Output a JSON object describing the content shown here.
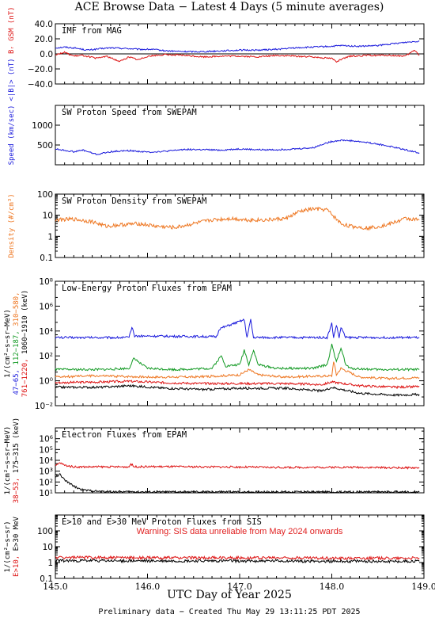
{
  "title": "ACE Browse Data − Latest 4 Days (5 minute averages)",
  "xlabel": "UTC Day of Year 2025",
  "footer": "Preliminary data − Created Thu May 29 13:11:25 PDT 2025",
  "colors": {
    "blue": "#1a1adc",
    "red": "#dd1111",
    "orange": "#ee7722",
    "green": "#119922",
    "black": "#000000"
  },
  "x_ticks": [
    {
      "v": 145,
      "label": "145.0"
    },
    {
      "v": 146,
      "label": "146.0"
    },
    {
      "v": 147,
      "label": "147.0"
    },
    {
      "v": 148,
      "label": "148.0"
    },
    {
      "v": 149,
      "label": "149.0"
    }
  ],
  "chart_data": [
    {
      "id": "imf",
      "type": "line",
      "title": "IMF from MAG",
      "xlim": [
        145,
        149
      ],
      "ylim": [
        -40,
        40
      ],
      "yscale": "linear",
      "zero_line": true,
      "y_ticks": [
        {
          "v": 40,
          "label": "40.0"
        },
        {
          "v": 20,
          "label": "20.0"
        },
        {
          "v": 0,
          "label": "0.0"
        },
        {
          "v": -20,
          "label": "−20.0"
        },
        {
          "v": -40,
          "label": "−40.0"
        }
      ],
      "ylabel_parts": [
        {
          "text": "<|B|> (nT)",
          "color": "#1a1adc"
        },
        {
          "text": "Bᵣ GSM (nT)",
          "color": "#dd1111"
        }
      ],
      "series": [
        {
          "color": "#1a1adc",
          "x": [
            145.0,
            145.1,
            145.2,
            145.35,
            145.5,
            145.6,
            145.8,
            145.9,
            146.05,
            146.2,
            146.4,
            146.6,
            146.8,
            147.0,
            147.2,
            147.4,
            147.6,
            147.8,
            148.0,
            148.1,
            148.3,
            148.5,
            148.7,
            148.85,
            148.95
          ],
          "y": [
            8,
            9,
            8,
            5,
            7,
            8,
            7,
            6,
            6,
            4,
            3,
            3,
            4,
            5,
            5,
            6,
            8,
            9,
            10,
            11,
            10,
            11,
            14,
            16,
            17
          ]
        },
        {
          "color": "#dd1111",
          "x": [
            145.0,
            145.1,
            145.2,
            145.3,
            145.45,
            145.55,
            145.7,
            145.8,
            145.9,
            146.0,
            146.2,
            146.4,
            146.6,
            146.8,
            147.0,
            147.2,
            147.4,
            147.6,
            147.8,
            148.0,
            148.05,
            148.2,
            148.4,
            148.6,
            148.8,
            148.9,
            148.95
          ],
          "y": [
            -1,
            2,
            -3,
            -2,
            -6,
            -3,
            -10,
            -4,
            -8,
            -3,
            -1,
            -2,
            -4,
            -3,
            -3,
            -4,
            -2,
            -3,
            -4,
            -6,
            -10,
            -3,
            -2,
            -2,
            -3,
            5,
            -2
          ]
        }
      ]
    },
    {
      "id": "speed",
      "type": "line",
      "title": "SW Proton Speed from SWEPAM",
      "xlim": [
        145,
        149
      ],
      "ylim": [
        0,
        1500
      ],
      "yscale": "linear",
      "y_ticks": [
        {
          "v": 1000,
          "label": "1000"
        },
        {
          "v": 500,
          "label": "500"
        }
      ],
      "ylabel_parts": [
        {
          "text": "Speed (km/sec)",
          "color": "#1a1adc"
        }
      ],
      "series": [
        {
          "color": "#1a1adc",
          "x": [
            145.0,
            145.2,
            145.3,
            145.45,
            145.6,
            145.8,
            146.0,
            146.2,
            146.4,
            146.6,
            146.8,
            147.0,
            147.2,
            147.4,
            147.6,
            147.8,
            147.9,
            148.0,
            148.1,
            148.2,
            148.4,
            148.6,
            148.8,
            148.95
          ],
          "y": [
            400,
            330,
            370,
            260,
            330,
            360,
            320,
            340,
            390,
            380,
            370,
            400,
            380,
            380,
            400,
            430,
            520,
            590,
            620,
            610,
            560,
            480,
            380,
            300
          ]
        }
      ]
    },
    {
      "id": "density",
      "type": "line",
      "title": "SW Proton Density from SWEPAM",
      "xlim": [
        145,
        149
      ],
      "ylim": [
        0.1,
        100
      ],
      "yscale": "log",
      "y_ticks": [
        {
          "v": 100,
          "label": "100"
        },
        {
          "v": 10,
          "label": "10"
        },
        {
          "v": 1,
          "label": "1"
        },
        {
          "v": 0.1,
          "label": "0.1"
        }
      ],
      "ylabel_parts": [
        {
          "text": "Density (#/cm³)",
          "color": "#ee7722"
        }
      ],
      "series": [
        {
          "color": "#ee7722",
          "x": [
            145.0,
            145.2,
            145.4,
            145.55,
            145.7,
            145.9,
            146.1,
            146.3,
            146.5,
            146.7,
            146.9,
            147.1,
            147.3,
            147.5,
            147.65,
            147.8,
            147.95,
            148.1,
            148.2,
            148.4,
            148.6,
            148.8,
            148.95
          ],
          "y": [
            6,
            6.5,
            5,
            3,
            3.5,
            4,
            3,
            2.6,
            4,
            6,
            7,
            6,
            6,
            7,
            15,
            20,
            18,
            4,
            3,
            2.5,
            3.5,
            7,
            6
          ]
        }
      ]
    },
    {
      "id": "epam_p",
      "type": "line",
      "title": "Low-Energy Proton Fluxes from EPAM",
      "xlim": [
        145,
        149
      ],
      "ylim": [
        0.01,
        100000000
      ],
      "yscale": "log",
      "y_ticks": [
        {
          "v": 100000000,
          "label": "10⁸"
        },
        {
          "v": 1000000,
          "label": "10⁶"
        },
        {
          "v": 10000,
          "label": "10⁴"
        },
        {
          "v": 100,
          "label": "10²"
        },
        {
          "v": 1,
          "label": "10⁰"
        },
        {
          "v": 0.01,
          "label": "10⁻²"
        }
      ],
      "ylabel_lines": [
        [
          {
            "text": "1/(cm²−s−sr−MeV)",
            "color": "#000000"
          }
        ],
        [
          {
            "text": "47−65, ",
            "color": "#1a1adc"
          },
          {
            "text": "112−187, ",
            "color": "#119922"
          },
          {
            "text": "310−580,",
            "color": "#ee7722"
          }
        ],
        [
          {
            "text": "761−1220, ",
            "color": "#dd1111"
          },
          {
            "text": "1060−1910 (keV)",
            "color": "#000000"
          }
        ]
      ],
      "series": [
        {
          "color": "#1a1adc",
          "x": [
            145.0,
            145.15,
            145.8,
            145.83,
            145.86,
            146.75,
            146.78,
            147.05,
            147.08,
            147.12,
            147.15,
            147.2,
            147.95,
            148.0,
            148.02,
            148.05,
            148.08,
            148.1,
            148.15,
            148.3,
            148.6,
            148.95
          ],
          "y": [
            3000,
            3000,
            3000,
            20000,
            4000,
            3500,
            15000,
            80000,
            3000,
            80000,
            3000,
            3000,
            3000,
            40000,
            3000,
            30000,
            3000,
            20000,
            3000,
            3000,
            3000,
            3000
          ]
        },
        {
          "color": "#119922",
          "x": [
            145.0,
            145.5,
            145.8,
            145.85,
            146.0,
            146.3,
            146.7,
            146.8,
            146.85,
            147.0,
            147.05,
            147.1,
            147.15,
            147.2,
            147.4,
            147.8,
            147.95,
            148.0,
            148.05,
            148.1,
            148.15,
            148.2,
            148.5,
            148.95
          ],
          "y": [
            8,
            8,
            10,
            60,
            10,
            8,
            10,
            100,
            15,
            20,
            300,
            20,
            300,
            20,
            10,
            10,
            20,
            800,
            30,
            500,
            20,
            10,
            8,
            8
          ]
        },
        {
          "color": "#ee7722",
          "x": [
            145.0,
            145.4,
            145.8,
            146.0,
            146.5,
            146.8,
            147.0,
            147.1,
            147.2,
            147.5,
            148.0,
            148.02,
            148.05,
            148.1,
            148.3,
            148.6,
            148.95
          ],
          "y": [
            2,
            2.5,
            2.2,
            2,
            2,
            2.5,
            3,
            8,
            3,
            2,
            2.5,
            40,
            3,
            10,
            2,
            1.5,
            1.8
          ]
        },
        {
          "color": "#dd1111",
          "x": [
            145.0,
            145.5,
            145.8,
            146.2,
            146.6,
            147.0,
            147.5,
            147.9,
            148.0,
            148.3,
            148.7,
            148.95
          ],
          "y": [
            0.7,
            0.8,
            0.9,
            0.7,
            0.6,
            0.6,
            0.6,
            0.5,
            0.8,
            0.4,
            0.3,
            0.35
          ]
        },
        {
          "color": "#000000",
          "x": [
            145.0,
            145.5,
            145.8,
            146.2,
            146.6,
            147.0,
            147.5,
            147.9,
            148.0,
            148.3,
            148.7,
            148.95
          ],
          "y": [
            0.3,
            0.3,
            0.4,
            0.25,
            0.2,
            0.25,
            0.25,
            0.15,
            0.3,
            0.1,
            0.07,
            0.08
          ]
        }
      ]
    },
    {
      "id": "epam_e",
      "type": "line",
      "title": "Electron Fluxes from EPAM",
      "xlim": [
        145,
        149
      ],
      "ylim": [
        10,
        10000000
      ],
      "yscale": "log",
      "y_ticks": [
        {
          "v": 1000000,
          "label": "10⁶"
        },
        {
          "v": 100000,
          "label": "10⁵"
        },
        {
          "v": 10000,
          "label": "10⁴"
        },
        {
          "v": 1000,
          "label": "10³"
        },
        {
          "v": 100,
          "label": "10²"
        },
        {
          "v": 10,
          "label": "10¹"
        }
      ],
      "ylabel_lines": [
        [
          {
            "text": "1/(cm²−s−sr−MeV)",
            "color": "#000000"
          }
        ],
        [
          {
            "text": "38−53, ",
            "color": "#dd1111"
          },
          {
            "text": "175−315 (keV)",
            "color": "#000000"
          }
        ]
      ],
      "series": [
        {
          "color": "#dd1111",
          "x": [
            145.0,
            145.05,
            145.1,
            145.2,
            145.4,
            145.8,
            145.82,
            145.85,
            146.2,
            146.6,
            147.0,
            147.5,
            148.0,
            148.3,
            148.6,
            148.95
          ],
          "y": [
            3000,
            6000,
            3500,
            2500,
            2500,
            2500,
            5000,
            2600,
            2600,
            2500,
            2400,
            2200,
            2300,
            2300,
            2100,
            2000
          ]
        },
        {
          "color": "#000000",
          "x": [
            145.0,
            145.05,
            145.1,
            145.2,
            145.3,
            145.5,
            146.0,
            146.5,
            147.0,
            147.5,
            148.0,
            148.5,
            148.95
          ],
          "y": [
            300,
            500,
            150,
            40,
            18,
            13,
            12,
            12,
            12,
            12,
            12,
            12,
            12
          ]
        }
      ]
    },
    {
      "id": "sis",
      "type": "line",
      "title": "E>10 and E>30 MeV Proton Fluxes from SIS",
      "warning": "Warning: SIS data unreliable from May 2024 onwards",
      "xlim": [
        145,
        149
      ],
      "ylim": [
        0.1,
        1000
      ],
      "yscale": "log",
      "y_ticks": [
        {
          "v": 100,
          "label": "100"
        },
        {
          "v": 10,
          "label": "10"
        },
        {
          "v": 1,
          "label": "1"
        },
        {
          "v": 0.1,
          "label": "0.1"
        }
      ],
      "ylabel_lines": [
        [
          {
            "text": "1/(cm²−s−sr)",
            "color": "#000000"
          }
        ],
        [
          {
            "text": "E>10, ",
            "color": "#dd1111"
          },
          {
            "text": "E>30 MeV",
            "color": "#000000"
          }
        ]
      ],
      "series": [
        {
          "color": "#dd1111",
          "x": [
            145.0,
            145.5,
            146.0,
            146.5,
            147.0,
            147.5,
            148.0,
            148.5,
            148.95
          ],
          "y": [
            2.1,
            2.1,
            2.0,
            2.0,
            2.0,
            2.0,
            1.9,
            1.9,
            1.9
          ]
        },
        {
          "color": "#000000",
          "x": [
            145.0,
            145.5,
            146.0,
            146.5,
            147.0,
            147.5,
            148.0,
            148.5,
            148.95
          ],
          "y": [
            1.3,
            1.3,
            1.25,
            1.25,
            1.25,
            1.25,
            1.2,
            1.2,
            1.2
          ]
        }
      ]
    }
  ]
}
